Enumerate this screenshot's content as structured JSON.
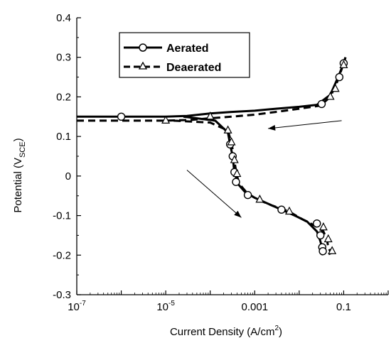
{
  "chart_data": {
    "type": "line",
    "xscale": "log",
    "xlim": [
      1e-07,
      1
    ],
    "ylim": [
      -0.3,
      0.4
    ],
    "xticks": [
      {
        "value": 1e-07,
        "base": "10",
        "exp": "-7"
      },
      {
        "value": 1e-05,
        "base": "10",
        "exp": "-5"
      },
      {
        "value": 0.001,
        "label": "0.001"
      },
      {
        "value": 0.1,
        "label": "0.1"
      }
    ],
    "yticks": [
      {
        "value": 0.4,
        "label": "0.4"
      },
      {
        "value": 0.3,
        "label": "0.3"
      },
      {
        "value": 0.2,
        "label": "0.2"
      },
      {
        "value": 0.1,
        "label": "0.1"
      },
      {
        "value": 0,
        "label": "0"
      },
      {
        "value": -0.1,
        "label": "-0.1"
      },
      {
        "value": -0.2,
        "label": "-0.2"
      },
      {
        "value": -0.3,
        "label": "-0.3"
      }
    ],
    "xlabel": {
      "main": "Current Density (A/cm",
      "sup": "2",
      "end": ")"
    },
    "ylabel": {
      "main": "Potential (V",
      "sub": "SCE",
      "end": ")"
    },
    "legend_position": "top-left",
    "series": [
      {
        "name": "Aerated",
        "line_style": "solid",
        "marker": "circle",
        "points": [
          [
            1e-07,
            0.15
          ],
          [
            1e-06,
            0.15
          ],
          [
            1e-05,
            0.15
          ],
          [
            3e-05,
            0.152
          ],
          [
            0.0001,
            0.158
          ],
          [
            0.0003,
            0.162
          ],
          [
            0.001,
            0.165
          ],
          [
            0.003,
            0.17
          ],
          [
            0.01,
            0.175
          ],
          [
            0.025,
            0.18
          ],
          [
            0.05,
            0.205
          ],
          [
            0.075,
            0.25
          ],
          [
            0.1,
            0.285
          ],
          [
            0.11,
            0.3
          ]
        ],
        "return_points": [
          [
            2.5e-05,
            0.15
          ],
          [
            0.00013,
            0.14
          ],
          [
            0.00025,
            0.11
          ],
          [
            0.00028,
            0.08
          ],
          [
            0.00032,
            0.05
          ],
          [
            0.00034,
            0.02
          ],
          [
            0.00037,
            0.0
          ],
          [
            0.00042,
            -0.02
          ],
          [
            0.0006,
            -0.04
          ],
          [
            0.001,
            -0.055
          ],
          [
            0.002,
            -0.07
          ],
          [
            0.004,
            -0.085
          ],
          [
            0.008,
            -0.1
          ],
          [
            0.015,
            -0.115
          ],
          [
            0.025,
            -0.14
          ],
          [
            0.03,
            -0.165
          ],
          [
            0.034,
            -0.19
          ],
          [
            0.032,
            -0.2
          ]
        ],
        "marker_points": [
          [
            1e-06,
            0.15
          ],
          [
            0.032,
            0.182
          ],
          [
            0.08,
            0.25
          ],
          [
            0.1,
            0.285
          ],
          [
            0.00028,
            0.08
          ],
          [
            0.00032,
            0.05
          ],
          [
            0.00035,
            0.01
          ],
          [
            0.00038,
            -0.015
          ],
          [
            0.0007,
            -0.048
          ],
          [
            0.004,
            -0.085
          ],
          [
            0.025,
            -0.12
          ],
          [
            0.03,
            -0.15
          ],
          [
            0.033,
            -0.18
          ],
          [
            0.034,
            -0.19
          ]
        ]
      },
      {
        "name": "Deaerated",
        "line_style": "dashed",
        "marker": "triangle",
        "points": [
          [
            1e-07,
            0.14
          ],
          [
            1e-06,
            0.14
          ],
          [
            1e-05,
            0.14
          ],
          [
            4e-05,
            0.142
          ],
          [
            0.0001,
            0.146
          ],
          [
            0.0003,
            0.15
          ],
          [
            0.001,
            0.155
          ],
          [
            0.003,
            0.162
          ],
          [
            0.01,
            0.17
          ],
          [
            0.03,
            0.178
          ],
          [
            0.05,
            0.2
          ],
          [
            0.07,
            0.235
          ],
          [
            0.09,
            0.27
          ],
          [
            0.11,
            0.3
          ]
        ],
        "return_points": [
          [
            1.5e-05,
            0.14
          ],
          [
            0.0001,
            0.135
          ],
          [
            0.00025,
            0.115
          ],
          [
            0.00029,
            0.09
          ],
          [
            0.00033,
            0.06
          ],
          [
            0.00036,
            0.03
          ],
          [
            0.00039,
            0.005
          ],
          [
            0.00045,
            -0.02
          ],
          [
            0.0007,
            -0.045
          ],
          [
            0.0012,
            -0.06
          ],
          [
            0.0025,
            -0.075
          ],
          [
            0.006,
            -0.09
          ],
          [
            0.012,
            -0.11
          ],
          [
            0.022,
            -0.125
          ],
          [
            0.035,
            -0.14
          ],
          [
            0.042,
            -0.16
          ],
          [
            0.045,
            -0.18
          ],
          [
            0.052,
            -0.195
          ],
          [
            0.04,
            -0.2
          ]
        ],
        "marker_points": [
          [
            1e-05,
            0.14
          ],
          [
            0.0001,
            0.15
          ],
          [
            0.05,
            0.2
          ],
          [
            0.065,
            0.22
          ],
          [
            0.1,
            0.28
          ],
          [
            0.00025,
            0.115
          ],
          [
            0.0003,
            0.085
          ],
          [
            0.00035,
            0.04
          ],
          [
            0.0004,
            0.005
          ],
          [
            0.0013,
            -0.06
          ],
          [
            0.006,
            -0.09
          ],
          [
            0.035,
            -0.13
          ],
          [
            0.045,
            -0.16
          ],
          [
            0.055,
            -0.19
          ]
        ]
      }
    ],
    "arrows": [
      {
        "from": [
          0.09,
          0.14
        ],
        "to": [
          0.002,
          0.12
        ]
      },
      {
        "from": [
          3e-05,
          0.015
        ],
        "to": [
          0.0005,
          -0.105
        ]
      }
    ]
  }
}
